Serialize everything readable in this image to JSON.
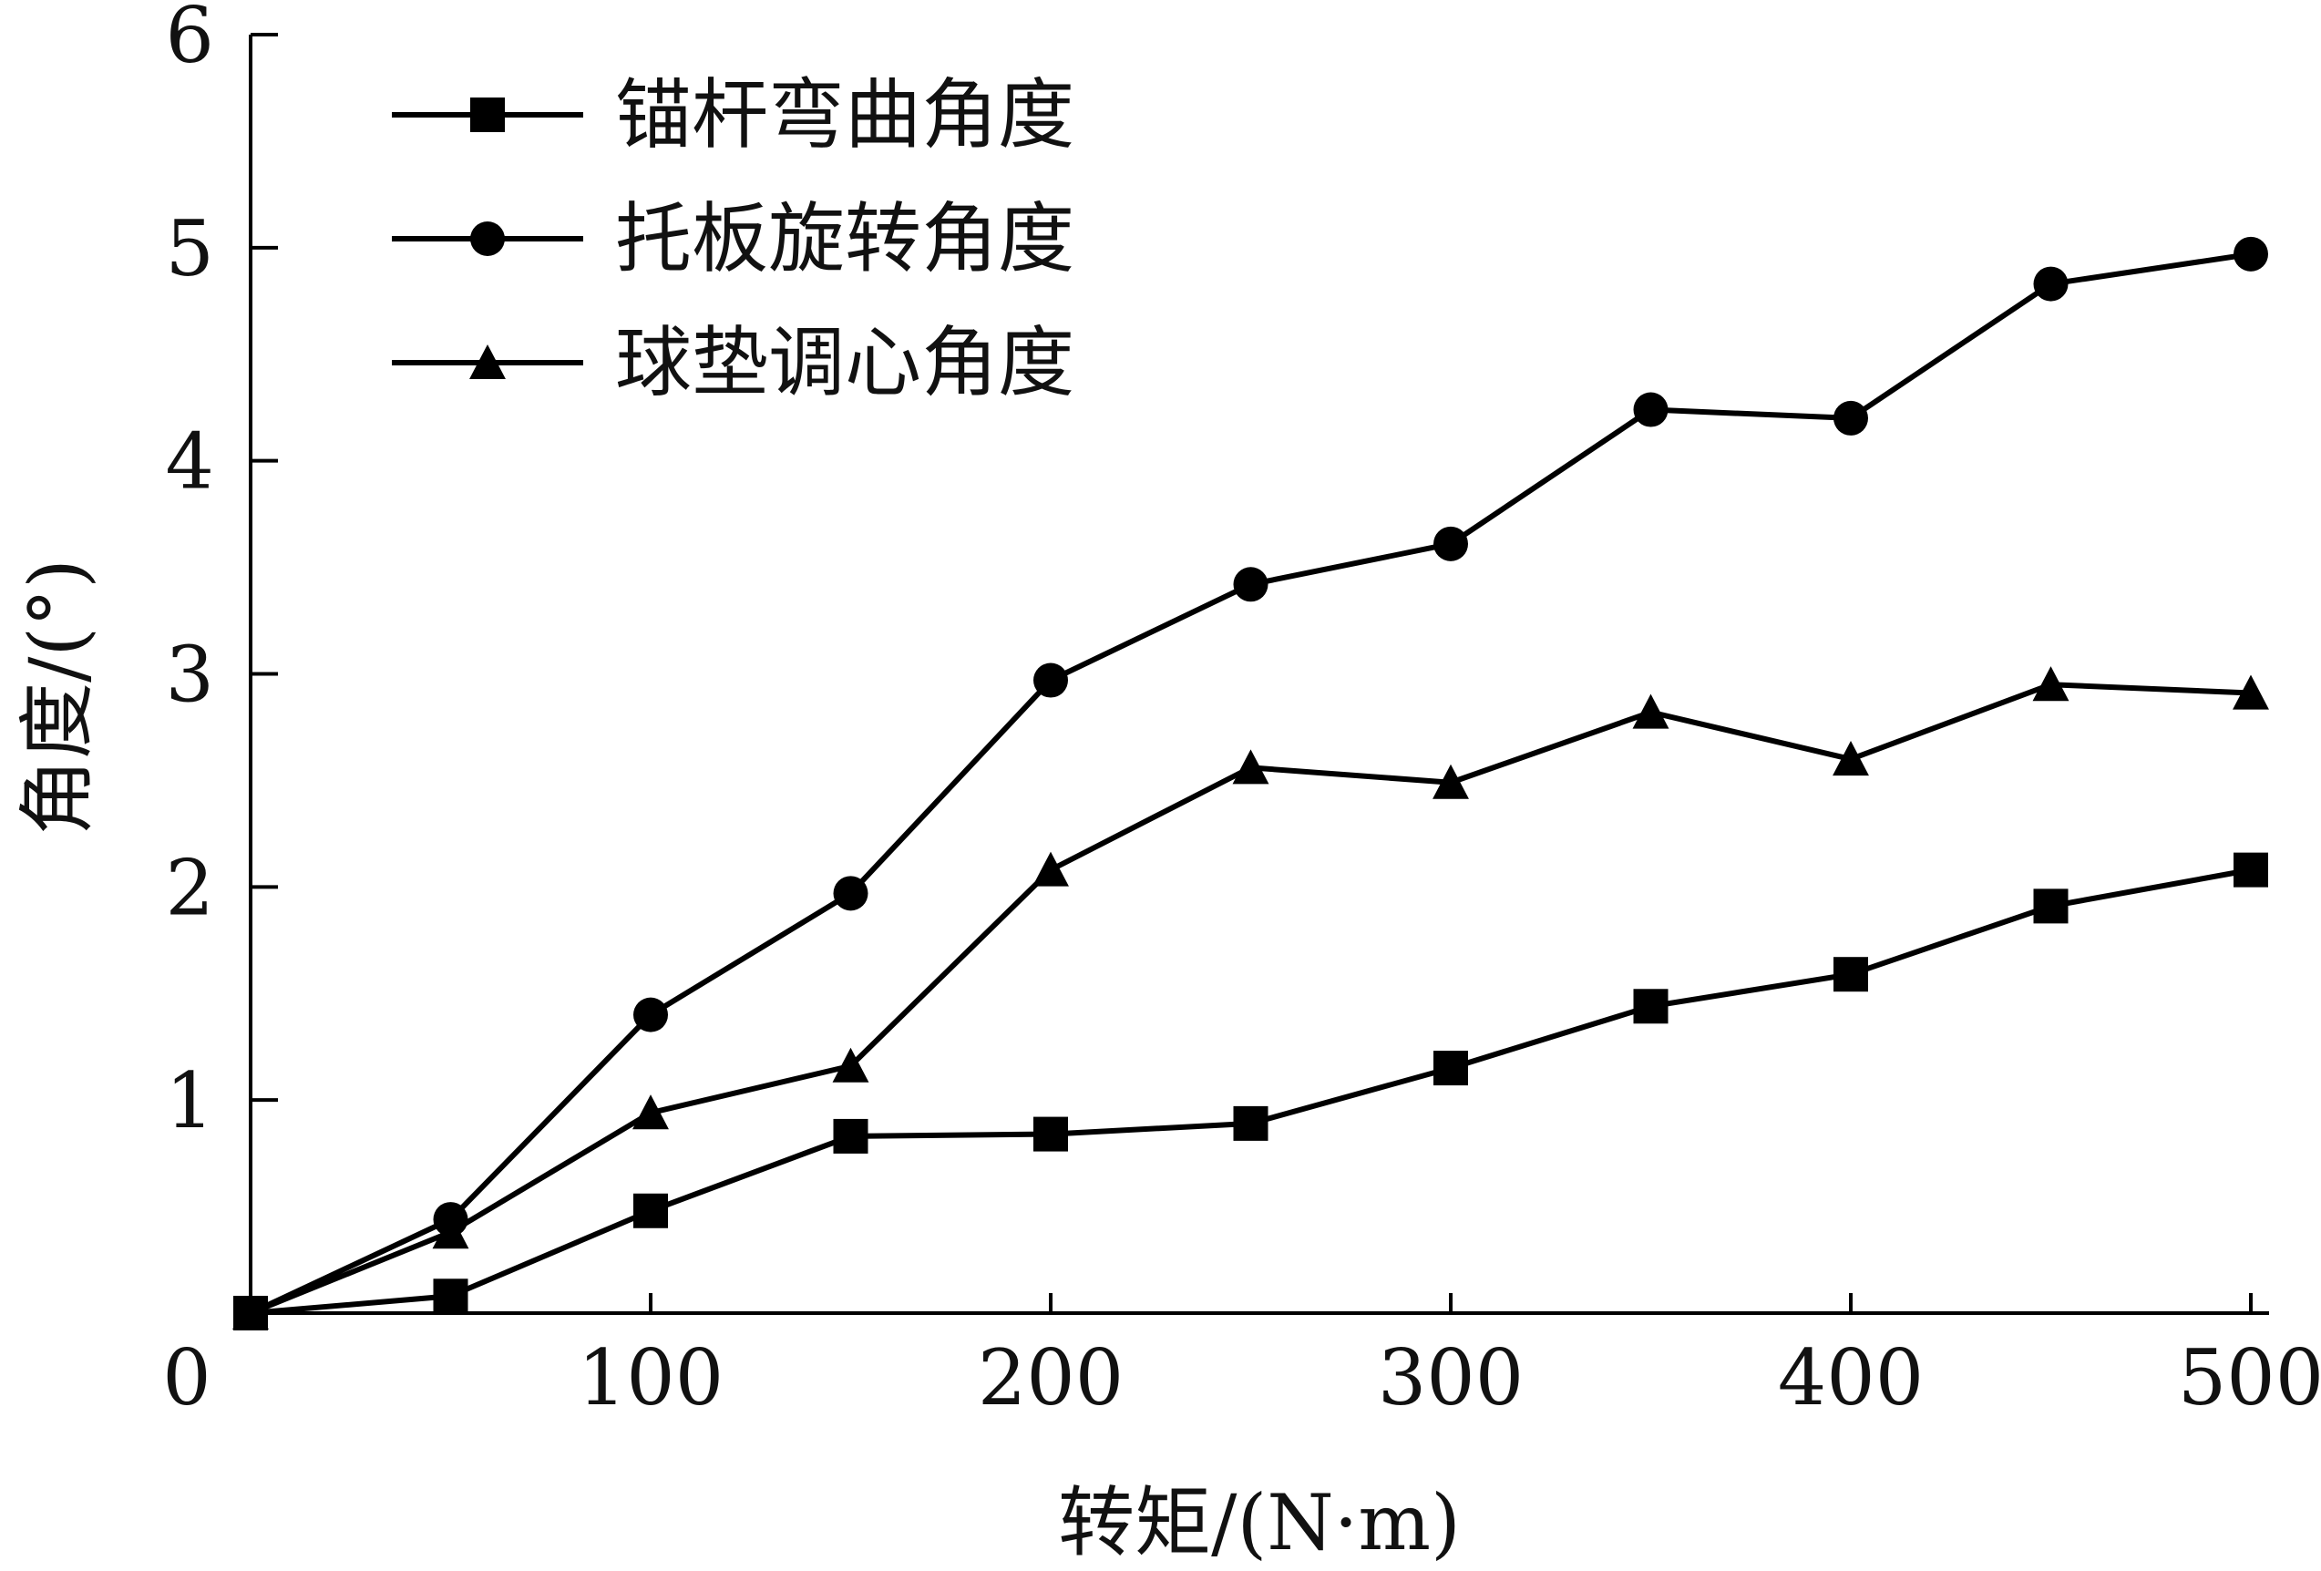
{
  "chart_data": {
    "type": "line",
    "title": "",
    "xlabel": "转矩/(N·m)",
    "ylabel": "角度/(°)",
    "xlim": [
      0,
      510
    ],
    "ylim": [
      0,
      6
    ],
    "x_ticks": [
      0,
      100,
      200,
      300,
      400,
      500
    ],
    "y_ticks": [
      1,
      2,
      3,
      4,
      5,
      6
    ],
    "grid": false,
    "legend_position": "top-left",
    "series": [
      {
        "name": "锚杆弯曲角度",
        "marker": "square",
        "color": "#000000",
        "x": [
          0,
          50,
          100,
          150,
          200,
          250,
          300,
          350,
          400,
          450,
          500
        ],
        "y": [
          0,
          0.08,
          0.48,
          0.83,
          0.84,
          0.89,
          1.15,
          1.44,
          1.59,
          1.91,
          2.08
        ]
      },
      {
        "name": "托板旋转角度",
        "marker": "circle",
        "color": "#000000",
        "x": [
          0,
          50,
          100,
          150,
          200,
          250,
          300,
          350,
          400,
          450,
          500
        ],
        "y": [
          0,
          0.44,
          1.4,
          1.97,
          2.97,
          3.42,
          3.61,
          4.24,
          4.2,
          4.83,
          4.97
        ]
      },
      {
        "name": "球垫调心角度",
        "marker": "triangle",
        "color": "#000000",
        "x": [
          0,
          50,
          100,
          150,
          200,
          250,
          300,
          350,
          400,
          450,
          500
        ],
        "y": [
          0,
          0.38,
          0.94,
          1.16,
          2.08,
          2.56,
          2.49,
          2.82,
          2.6,
          2.95,
          2.91
        ]
      }
    ]
  }
}
